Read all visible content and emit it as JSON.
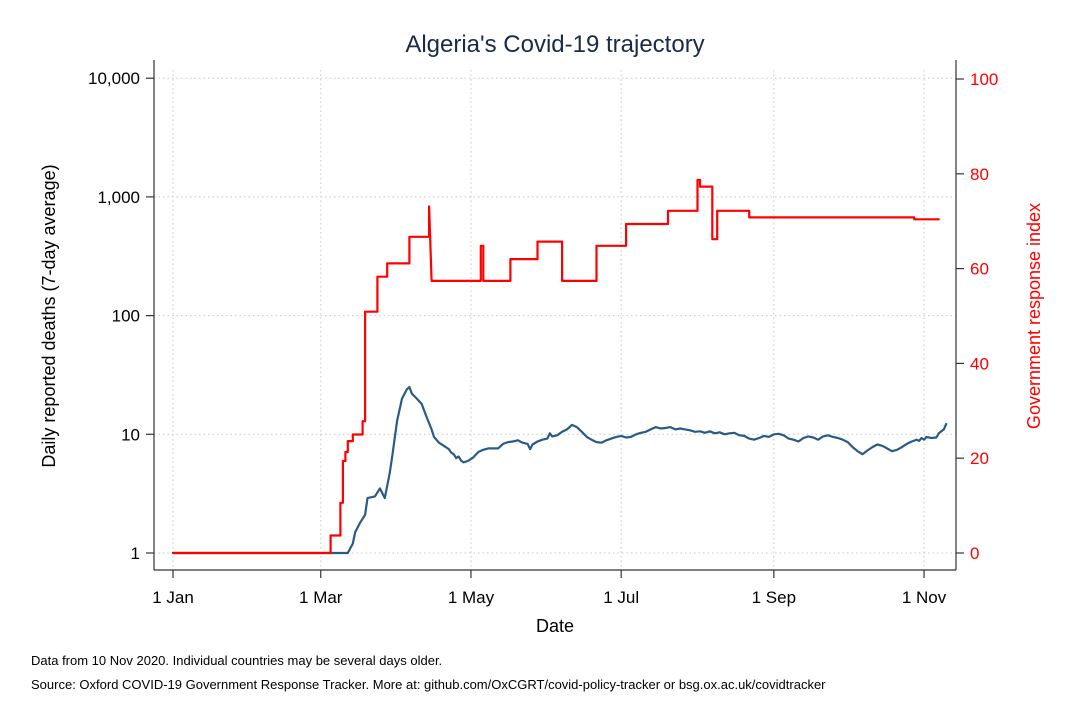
{
  "chart_data": {
    "type": "line",
    "title": "Algeria's Covid-19 trajectory",
    "xlabel": "Date",
    "ylabel_left": "Daily reported deaths (7-day average)",
    "ylabel_right": "Government response index",
    "x_ticks": [
      "1 Jan",
      "1 Mar",
      "1 May",
      "1 Jul",
      "1 Sep",
      "1 Nov"
    ],
    "x_tick_days": [
      0,
      60,
      121,
      182,
      244,
      305
    ],
    "y_left_scale": "log",
    "y_left_ticks": [
      1,
      10,
      100,
      1000,
      10000
    ],
    "y_left_tick_labels": [
      "1",
      "10",
      "100",
      "1,000",
      "10,000"
    ],
    "y_right_ticks": [
      0,
      20,
      40,
      60,
      80,
      100
    ],
    "y_right_range": [
      0,
      100
    ],
    "grid": true,
    "colors": {
      "deaths": "#2a5b85",
      "index": "#ff0000",
      "axis": "#333333",
      "grid": "#c8c8c8"
    },
    "series": [
      {
        "axis": "left",
        "color": "#2a5b85",
        "points": [
          [
            "2020-01-01",
            1
          ],
          [
            "2020-03-06",
            1
          ],
          [
            "2020-03-12",
            1
          ],
          [
            "2020-03-14",
            1.2
          ],
          [
            "2020-03-15",
            1.5
          ],
          [
            "2020-03-17",
            1.8
          ],
          [
            "2020-03-19",
            2.1
          ],
          [
            "2020-03-20",
            2.9
          ],
          [
            "2020-03-23",
            3.0
          ],
          [
            "2020-03-25",
            3.5
          ],
          [
            "2020-03-27",
            2.9
          ],
          [
            "2020-03-29",
            4.7
          ],
          [
            "2020-03-30",
            6.5
          ],
          [
            "2020-04-01",
            13
          ],
          [
            "2020-04-03",
            20
          ],
          [
            "2020-04-05",
            24
          ],
          [
            "2020-04-06",
            25
          ],
          [
            "2020-04-07",
            22
          ],
          [
            "2020-04-09",
            20
          ],
          [
            "2020-04-11",
            18
          ],
          [
            "2020-04-13",
            14
          ],
          [
            "2020-04-15",
            11
          ],
          [
            "2020-04-16",
            9.5
          ],
          [
            "2020-04-18",
            8.5
          ],
          [
            "2020-04-20",
            8.0
          ],
          [
            "2020-04-22",
            7.5
          ],
          [
            "2020-04-23",
            7.0
          ],
          [
            "2020-04-24",
            6.8
          ],
          [
            "2020-04-25",
            6.3
          ],
          [
            "2020-04-26",
            6.5
          ],
          [
            "2020-04-27",
            6.0
          ],
          [
            "2020-04-28",
            5.8
          ],
          [
            "2020-04-30",
            6.0
          ],
          [
            "2020-05-02",
            6.4
          ],
          [
            "2020-05-04",
            7.1
          ],
          [
            "2020-05-06",
            7.4
          ],
          [
            "2020-05-08",
            7.6
          ],
          [
            "2020-05-10",
            7.6
          ],
          [
            "2020-05-12",
            7.6
          ],
          [
            "2020-05-14",
            8.3
          ],
          [
            "2020-05-16",
            8.6
          ],
          [
            "2020-05-18",
            8.7
          ],
          [
            "2020-05-20",
            8.9
          ],
          [
            "2020-05-22",
            8.5
          ],
          [
            "2020-05-24",
            8.3
          ],
          [
            "2020-05-25",
            7.5
          ],
          [
            "2020-05-26",
            8.2
          ],
          [
            "2020-05-28",
            8.7
          ],
          [
            "2020-05-30",
            9.0
          ],
          [
            "2020-06-01",
            9.2
          ],
          [
            "2020-06-02",
            10.2
          ],
          [
            "2020-06-03",
            9.6
          ],
          [
            "2020-06-05",
            9.8
          ],
          [
            "2020-06-07",
            10.5
          ],
          [
            "2020-06-09",
            11.0
          ],
          [
            "2020-06-11",
            12.0
          ],
          [
            "2020-06-13",
            11.5
          ],
          [
            "2020-06-15",
            10.5
          ],
          [
            "2020-06-17",
            9.5
          ],
          [
            "2020-06-19",
            9.0
          ],
          [
            "2020-06-21",
            8.6
          ],
          [
            "2020-06-23",
            8.5
          ],
          [
            "2020-06-25",
            8.9
          ],
          [
            "2020-06-27",
            9.2
          ],
          [
            "2020-06-29",
            9.5
          ],
          [
            "2020-07-01",
            9.7
          ],
          [
            "2020-07-03",
            9.4
          ],
          [
            "2020-07-05",
            9.5
          ],
          [
            "2020-07-07",
            10.0
          ],
          [
            "2020-07-09",
            10.3
          ],
          [
            "2020-07-11",
            10.5
          ],
          [
            "2020-07-13",
            11.0
          ],
          [
            "2020-07-15",
            11.5
          ],
          [
            "2020-07-17",
            11.2
          ],
          [
            "2020-07-19",
            11.3
          ],
          [
            "2020-07-21",
            11.5
          ],
          [
            "2020-07-23",
            11.0
          ],
          [
            "2020-07-25",
            11.2
          ],
          [
            "2020-07-27",
            11.0
          ],
          [
            "2020-07-29",
            10.8
          ],
          [
            "2020-07-31",
            10.5
          ],
          [
            "2020-08-02",
            10.6
          ],
          [
            "2020-08-04",
            10.3
          ],
          [
            "2020-08-06",
            10.6
          ],
          [
            "2020-08-08",
            10.2
          ],
          [
            "2020-08-10",
            10.4
          ],
          [
            "2020-08-12",
            10.0
          ],
          [
            "2020-08-14",
            10.2
          ],
          [
            "2020-08-16",
            10.3
          ],
          [
            "2020-08-18",
            9.8
          ],
          [
            "2020-08-20",
            9.7
          ],
          [
            "2020-08-22",
            9.2
          ],
          [
            "2020-08-24",
            9.0
          ],
          [
            "2020-08-26",
            9.3
          ],
          [
            "2020-08-28",
            9.7
          ],
          [
            "2020-08-30",
            9.5
          ],
          [
            "2020-09-01",
            10.0
          ],
          [
            "2020-09-03",
            10.1
          ],
          [
            "2020-09-05",
            9.8
          ],
          [
            "2020-09-07",
            9.2
          ],
          [
            "2020-09-09",
            9.0
          ],
          [
            "2020-09-11",
            8.7
          ],
          [
            "2020-09-13",
            9.3
          ],
          [
            "2020-09-15",
            9.6
          ],
          [
            "2020-09-17",
            9.4
          ],
          [
            "2020-09-19",
            9.0
          ],
          [
            "2020-09-21",
            9.6
          ],
          [
            "2020-09-23",
            9.8
          ],
          [
            "2020-09-25",
            9.5
          ],
          [
            "2020-09-27",
            9.3
          ],
          [
            "2020-09-29",
            9.0
          ],
          [
            "2020-10-01",
            8.6
          ],
          [
            "2020-10-03",
            7.8
          ],
          [
            "2020-10-05",
            7.2
          ],
          [
            "2020-10-07",
            6.8
          ],
          [
            "2020-10-09",
            7.3
          ],
          [
            "2020-10-11",
            7.8
          ],
          [
            "2020-10-13",
            8.2
          ],
          [
            "2020-10-15",
            8.0
          ],
          [
            "2020-10-17",
            7.6
          ],
          [
            "2020-10-19",
            7.2
          ],
          [
            "2020-10-21",
            7.4
          ],
          [
            "2020-10-23",
            7.8
          ],
          [
            "2020-10-25",
            8.3
          ],
          [
            "2020-10-27",
            8.7
          ],
          [
            "2020-10-29",
            9.0
          ],
          [
            "2020-10-30",
            8.8
          ],
          [
            "2020-10-31",
            9.3
          ],
          [
            "2020-11-01",
            9.0
          ],
          [
            "2020-11-02",
            9.5
          ],
          [
            "2020-11-04",
            9.3
          ],
          [
            "2020-11-06",
            9.4
          ],
          [
            "2020-11-07",
            10.2
          ],
          [
            "2020-11-09",
            11.0
          ],
          [
            "2020-11-10",
            12.2
          ]
        ]
      },
      {
        "axis": "right",
        "color": "#ff0000",
        "step": true,
        "points": [
          [
            "2020-01-01",
            0
          ],
          [
            "2020-03-05",
            0
          ],
          [
            "2020-03-05",
            3.7
          ],
          [
            "2020-03-09",
            3.7
          ],
          [
            "2020-03-09",
            10.6
          ],
          [
            "2020-03-10",
            10.6
          ],
          [
            "2020-03-10",
            19.4
          ],
          [
            "2020-03-11",
            19.4
          ],
          [
            "2020-03-11",
            21.3
          ],
          [
            "2020-03-12",
            21.3
          ],
          [
            "2020-03-12",
            23.6
          ],
          [
            "2020-03-14",
            23.6
          ],
          [
            "2020-03-14",
            25.0
          ],
          [
            "2020-03-18",
            25.0
          ],
          [
            "2020-03-18",
            27.8
          ],
          [
            "2020-03-19",
            27.8
          ],
          [
            "2020-03-19",
            50.9
          ],
          [
            "2020-03-24",
            50.9
          ],
          [
            "2020-03-24",
            58.3
          ],
          [
            "2020-03-28",
            58.3
          ],
          [
            "2020-03-28",
            61.1
          ],
          [
            "2020-04-06",
            61.1
          ],
          [
            "2020-04-06",
            66.7
          ],
          [
            "2020-04-14",
            66.7
          ],
          [
            "2020-04-14",
            73.1
          ],
          [
            "2020-04-15",
            57.4
          ],
          [
            "2020-05-05",
            57.4
          ],
          [
            "2020-05-05",
            64.8
          ],
          [
            "2020-05-06",
            64.8
          ],
          [
            "2020-05-06",
            57.4
          ],
          [
            "2020-05-17",
            57.4
          ],
          [
            "2020-05-17",
            62.0
          ],
          [
            "2020-05-28",
            62.0
          ],
          [
            "2020-05-28",
            65.7
          ],
          [
            "2020-06-07",
            65.7
          ],
          [
            "2020-06-07",
            57.4
          ],
          [
            "2020-06-21",
            57.4
          ],
          [
            "2020-06-21",
            64.8
          ],
          [
            "2020-07-03",
            64.8
          ],
          [
            "2020-07-03",
            69.4
          ],
          [
            "2020-07-20",
            69.4
          ],
          [
            "2020-07-20",
            72.2
          ],
          [
            "2020-08-01",
            72.2
          ],
          [
            "2020-08-01",
            78.7
          ],
          [
            "2020-08-02",
            78.7
          ],
          [
            "2020-08-02",
            77.3
          ],
          [
            "2020-08-07",
            77.3
          ],
          [
            "2020-08-07",
            66.2
          ],
          [
            "2020-08-09",
            66.2
          ],
          [
            "2020-08-09",
            72.2
          ],
          [
            "2020-08-22",
            72.2
          ],
          [
            "2020-08-22",
            70.8
          ],
          [
            "2020-10-28",
            70.8
          ],
          [
            "2020-10-28",
            70.4
          ],
          [
            "2020-11-07",
            70.4
          ]
        ]
      }
    ]
  },
  "notes": {
    "line1": "Data from 10 Nov 2020. Individual countries may be several days older.",
    "line2": "Source: Oxford COVID-19 Government Response Tracker. More at: github.com/OxCGRT/covid-policy-tracker or bsg.ox.ac.uk/covidtracker"
  }
}
